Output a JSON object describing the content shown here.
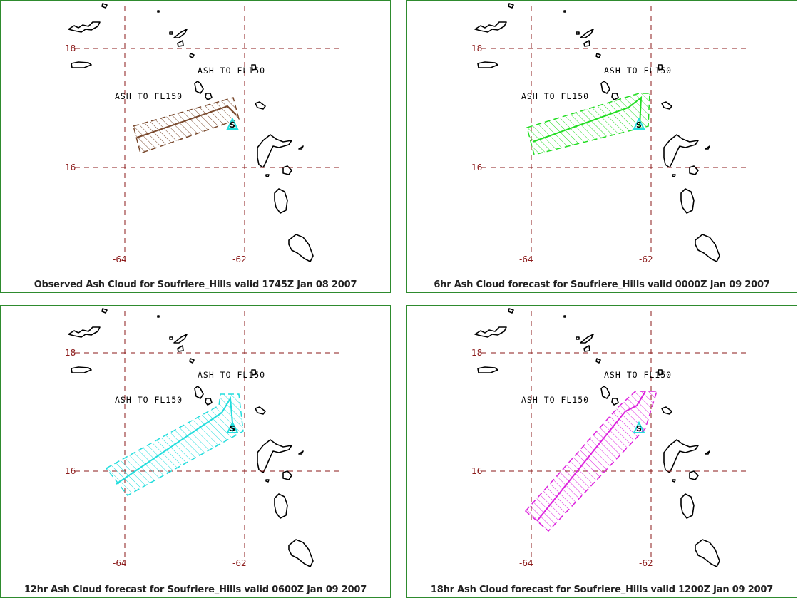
{
  "panels": [
    {
      "caption": "Observed Ash Cloud for Soufriere_Hills valid 1745Z Jan 08 2007",
      "ash_color": "#7a4a2e",
      "labels": {
        "upper": "ASH TO FL150",
        "lower": "ASH TO FL150"
      }
    },
    {
      "caption": "6hr Ash Cloud forecast for Soufriere_Hills valid 0000Z Jan 09 2007",
      "ash_color": "#22dd22",
      "labels": {
        "upper": "ASH TO FL150",
        "lower": "ASH TO FL150"
      }
    },
    {
      "caption": "12hr Ash Cloud forecast for Soufriere_Hills valid 0600Z Jan 09 2007",
      "ash_color": "#22dddd",
      "labels": {
        "upper": "ASH TO FL150",
        "lower": "ASH TO FL150"
      }
    },
    {
      "caption": "18hr Ash Cloud forecast for Soufriere_Hills valid 1200Z Jan 09 2007",
      "ash_color": "#dd22dd",
      "labels": {
        "upper": "ASH TO FL150",
        "lower": "ASH TO FL150"
      }
    }
  ],
  "grid": {
    "lat_labels": [
      "18",
      "16"
    ],
    "lon_labels": [
      "-64",
      "-62"
    ],
    "line_color": "#8b1a1a"
  },
  "volcano_marker": {
    "symbol": "S",
    "color": "#22dddd"
  }
}
